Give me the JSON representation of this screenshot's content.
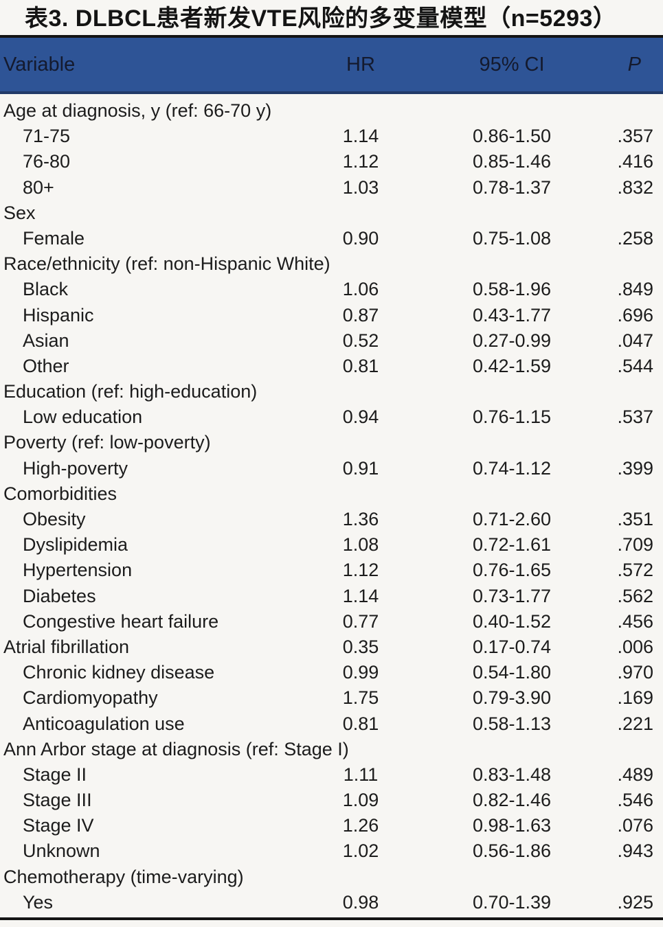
{
  "page": {
    "title": "表3. DLBCL患者新发VTE风险的多变量模型（n=5293）"
  },
  "colors": {
    "header_background": "#2e5496",
    "header_text": "#141a2e",
    "rule_black": "#141414",
    "header_bottom_rule": "#223a68",
    "body_text": "#1c1c1c",
    "page_background": "#f7f6f3"
  },
  "table": {
    "columns": [
      "Variable",
      "HR",
      "95% CI",
      "P"
    ],
    "rows": [
      {
        "label": "Age at diagnosis, y (ref: 66-70 y)",
        "indent": false,
        "hr": "",
        "ci": "",
        "p": ""
      },
      {
        "label": "71-75",
        "indent": true,
        "hr": "1.14",
        "ci": "0.86-1.50",
        "p": ".357"
      },
      {
        "label": "76-80",
        "indent": true,
        "hr": "1.12",
        "ci": "0.85-1.46",
        "p": ".416"
      },
      {
        "label": "80+",
        "indent": true,
        "hr": "1.03",
        "ci": "0.78-1.37",
        "p": ".832"
      },
      {
        "label": "Sex",
        "indent": false,
        "hr": "",
        "ci": "",
        "p": ""
      },
      {
        "label": "Female",
        "indent": true,
        "hr": "0.90",
        "ci": "0.75-1.08",
        "p": ".258"
      },
      {
        "label": "Race/ethnicity (ref: non-Hispanic White)",
        "indent": false,
        "hr": "",
        "ci": "",
        "p": ""
      },
      {
        "label": "Black",
        "indent": true,
        "hr": "1.06",
        "ci": "0.58-1.96",
        "p": ".849"
      },
      {
        "label": "Hispanic",
        "indent": true,
        "hr": "0.87",
        "ci": "0.43-1.77",
        "p": ".696"
      },
      {
        "label": "Asian",
        "indent": true,
        "hr": "0.52",
        "ci": "0.27-0.99",
        "p": ".047"
      },
      {
        "label": "Other",
        "indent": true,
        "hr": "0.81",
        "ci": "0.42-1.59",
        "p": ".544"
      },
      {
        "label": "Education (ref: high-education)",
        "indent": false,
        "hr": "",
        "ci": "",
        "p": ""
      },
      {
        "label": "Low education",
        "indent": true,
        "hr": "0.94",
        "ci": "0.76-1.15",
        "p": ".537"
      },
      {
        "label": "Poverty (ref: low-poverty)",
        "indent": false,
        "hr": "",
        "ci": "",
        "p": ""
      },
      {
        "label": "High-poverty",
        "indent": true,
        "hr": "0.91",
        "ci": "0.74-1.12",
        "p": ".399"
      },
      {
        "label": "Comorbidities",
        "indent": false,
        "hr": "",
        "ci": "",
        "p": ""
      },
      {
        "label": "Obesity",
        "indent": true,
        "hr": "1.36",
        "ci": "0.71-2.60",
        "p": ".351"
      },
      {
        "label": "Dyslipidemia",
        "indent": true,
        "hr": "1.08",
        "ci": "0.72-1.61",
        "p": ".709"
      },
      {
        "label": "Hypertension",
        "indent": true,
        "hr": "1.12",
        "ci": "0.76-1.65",
        "p": ".572"
      },
      {
        "label": "Diabetes",
        "indent": true,
        "hr": "1.14",
        "ci": "0.73-1.77",
        "p": ".562"
      },
      {
        "label": "Congestive heart failure",
        "indent": true,
        "hr": "0.77",
        "ci": "0.40-1.52",
        "p": ".456"
      },
      {
        "label": "Atrial fibrillation",
        "indent": false,
        "hr": "0.35",
        "ci": "0.17-0.74",
        "p": ".006"
      },
      {
        "label": "Chronic kidney disease",
        "indent": true,
        "hr": "0.99",
        "ci": "0.54-1.80",
        "p": ".970"
      },
      {
        "label": "Cardiomyopathy",
        "indent": true,
        "hr": "1.75",
        "ci": "0.79-3.90",
        "p": ".169"
      },
      {
        "label": "Anticoagulation use",
        "indent": true,
        "hr": "0.81",
        "ci": "0.58-1.13",
        "p": ".221"
      },
      {
        "label": "Ann Arbor stage at diagnosis (ref: Stage I)",
        "indent": false,
        "hr": "",
        "ci": "",
        "p": ""
      },
      {
        "label": "Stage II",
        "indent": true,
        "hr": "1.11",
        "ci": "0.83-1.48",
        "p": ".489"
      },
      {
        "label": "Stage III",
        "indent": true,
        "hr": "1.09",
        "ci": "0.82-1.46",
        "p": ".546"
      },
      {
        "label": "Stage IV",
        "indent": true,
        "hr": "1.26",
        "ci": "0.98-1.63",
        "p": ".076"
      },
      {
        "label": "Unknown",
        "indent": true,
        "hr": "1.02",
        "ci": "0.56-1.86",
        "p": ".943"
      },
      {
        "label": "Chemotherapy (time-varying)",
        "indent": false,
        "hr": "",
        "ci": "",
        "p": ""
      },
      {
        "label": "Yes",
        "indent": true,
        "hr": "0.98",
        "ci": "0.70-1.39",
        "p": ".925"
      }
    ]
  }
}
